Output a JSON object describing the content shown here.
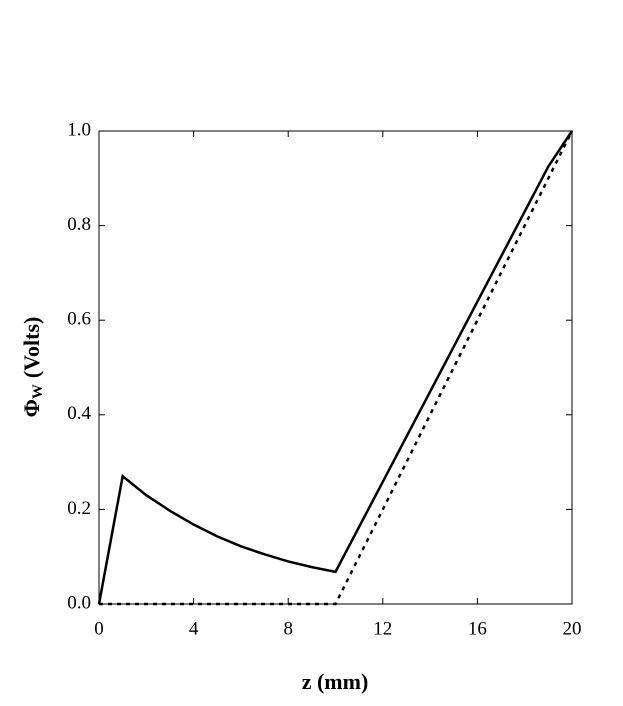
{
  "chart_data": {
    "type": "line",
    "x_label": "z (mm)",
    "y_label": {
      "symbol": "Φ",
      "subscript": "W",
      "unit": "(Volts)"
    },
    "series": [
      {
        "color": "#000000",
        "style": "solid",
        "x": [
          0,
          1,
          2,
          3,
          4,
          5,
          6,
          7,
          8,
          9,
          10,
          19,
          20
        ],
        "values": [
          0,
          0.27,
          0.23,
          0.197,
          0.168,
          0.143,
          0.122,
          0.105,
          0.09,
          0.078,
          0.068,
          0.925,
          1.0
        ]
      },
      {
        "color": "#000000",
        "style": "dotted",
        "x": [
          0,
          10,
          20
        ],
        "values": [
          0,
          0,
          1.0
        ]
      }
    ],
    "xlim": [
      0,
      20
    ],
    "xticks": [
      0,
      4,
      8,
      12,
      16,
      20
    ],
    "ylim": [
      0,
      1.0
    ],
    "yticks": [
      {
        "value": 0,
        "label": "0.0"
      },
      0.2,
      0.4,
      0.6,
      0.8,
      {
        "value": 1.0,
        "label": "1.0"
      }
    ],
    "grid": false
  }
}
